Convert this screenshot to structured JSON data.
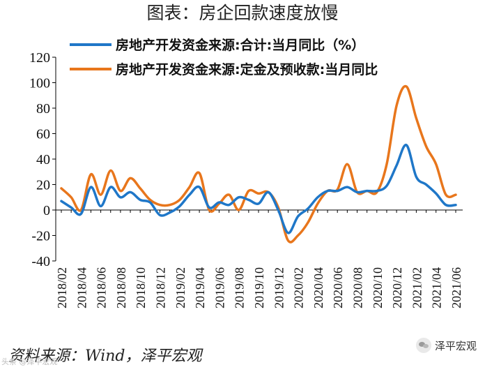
{
  "figure_title": "图表：房企回款速度放慢",
  "source_note": "资料来源：Wind，泽平宏观",
  "brand_name": "泽平宏观",
  "watermark": "头条 @泽平宏观",
  "colors": {
    "series1": "#1F77C8",
    "series2": "#E8761C",
    "axis": "#000000",
    "text": "#111111"
  },
  "chart_data": {
    "type": "line",
    "title": "图表：房企回款速度放慢",
    "xlabel": "",
    "ylabel": "",
    "ylim": [
      -40,
      120
    ],
    "yticks": [
      -40,
      -20,
      0,
      20,
      40,
      60,
      80,
      100,
      120
    ],
    "grid": false,
    "legend_position": "top-center",
    "x": [
      "2018/02",
      "2018/03",
      "2018/04",
      "2018/05",
      "2018/06",
      "2018/07",
      "2018/08",
      "2018/09",
      "2018/10",
      "2018/11",
      "2018/12",
      "2019/01",
      "2019/02",
      "2019/03",
      "2019/04",
      "2019/05",
      "2019/06",
      "2019/07",
      "2019/08",
      "2019/09",
      "2019/10",
      "2019/11",
      "2019/12",
      "2020/01",
      "2020/02",
      "2020/03",
      "2020/04",
      "2020/05",
      "2020/06",
      "2020/07",
      "2020/08",
      "2020/09",
      "2020/10",
      "2020/11",
      "2020/12",
      "2021/01",
      "2021/02",
      "2021/03",
      "2021/04",
      "2021/05",
      "2021/06"
    ],
    "x_tick_labels": [
      "2018/02",
      "2018/04",
      "2018/06",
      "2018/08",
      "2018/10",
      "2018/12",
      "2019/02",
      "2019/04",
      "2019/06",
      "2019/08",
      "2019/10",
      "2019/12",
      "2020/02",
      "2020/04",
      "2020/06",
      "2020/08",
      "2020/10",
      "2020/12",
      "2021/02",
      "2021/04",
      "2021/06"
    ],
    "series": [
      {
        "name": "房地产开发资金来源:合计:当月同比（%）",
        "values": [
          7,
          2,
          -3,
          18,
          3,
          18,
          10,
          14,
          8,
          6,
          -4,
          -2,
          3,
          12,
          18,
          2,
          6,
          4,
          10,
          8,
          5,
          14,
          0,
          -18,
          -5,
          1,
          10,
          15,
          15,
          18,
          14,
          15,
          15,
          19,
          35,
          51,
          26,
          20,
          13,
          4,
          4
        ]
      },
      {
        "name": "房地产开发资金来源:定金及预收款:当月同比",
        "values": [
          17,
          10,
          0,
          28,
          12,
          31,
          15,
          25,
          17,
          8,
          4,
          4,
          8,
          18,
          29,
          0,
          5,
          12,
          0,
          15,
          13,
          14,
          2,
          -24,
          -20,
          -10,
          5,
          15,
          16,
          36,
          14,
          15,
          14,
          36,
          82,
          97,
          72,
          50,
          36,
          12,
          12
        ]
      }
    ]
  }
}
